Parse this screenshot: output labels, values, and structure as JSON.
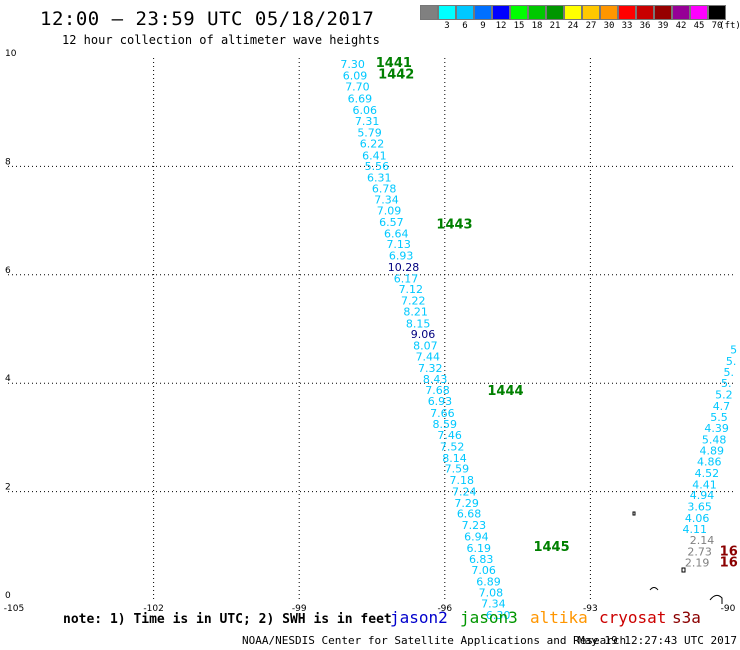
{
  "header": {
    "title": "12:00 – 23:59 UTC 05/18/2017",
    "subtitle": "12 hour collection of altimeter wave heights"
  },
  "legend": {
    "unit_label": "(ft)",
    "entries": [
      {
        "label": "",
        "color": "#808080"
      },
      {
        "label": "3",
        "color": "#00ffff"
      },
      {
        "label": "6",
        "color": "#00c8ff"
      },
      {
        "label": "9",
        "color": "#0070ff"
      },
      {
        "label": "12",
        "color": "#0000ff"
      },
      {
        "label": "15",
        "color": "#00ff00"
      },
      {
        "label": "18",
        "color": "#00c800"
      },
      {
        "label": "21",
        "color": "#009600"
      },
      {
        "label": "24",
        "color": "#ffff00"
      },
      {
        "label": "27",
        "color": "#ffc800"
      },
      {
        "label": "30",
        "color": "#ff9600"
      },
      {
        "label": "33",
        "color": "#ff0000"
      },
      {
        "label": "36",
        "color": "#c80000"
      },
      {
        "label": "39",
        "color": "#960000"
      },
      {
        "label": "42",
        "color": "#960096"
      },
      {
        "label": "45",
        "color": "#ff00ff"
      },
      {
        "label": "70",
        "color": "#000000"
      }
    ]
  },
  "map": {
    "lon_range": [
      -105,
      -90
    ],
    "lat_range": [
      0,
      10
    ],
    "lon_ticks": [
      "-105",
      "-102",
      "-99",
      "-96",
      "-93",
      "-90"
    ],
    "lat_ticks": [
      "0",
      "2",
      "4",
      "6",
      "8",
      "10"
    ],
    "colors": {
      "cyan": "#00c8ff",
      "navy": "#000080",
      "green": "#008000",
      "gray": "#808080",
      "darkred": "#8b0000"
    },
    "track_a": [
      {
        "lon": -97.9,
        "lat": 9.82,
        "v": "7.30"
      },
      {
        "lon": -97.85,
        "lat": 9.6,
        "v": "6.09"
      },
      {
        "lon": -97.8,
        "lat": 9.4,
        "v": "7.70"
      },
      {
        "lon": -97.75,
        "lat": 9.18,
        "v": "6.69"
      },
      {
        "lon": -97.65,
        "lat": 8.97,
        "v": "6.06"
      },
      {
        "lon": -97.6,
        "lat": 8.76,
        "v": "7.31"
      },
      {
        "lon": -97.55,
        "lat": 8.55,
        "v": "5.79"
      },
      {
        "lon": -97.5,
        "lat": 8.35,
        "v": "6.22"
      },
      {
        "lon": -97.45,
        "lat": 8.13,
        "v": "6.41"
      },
      {
        "lon": -97.4,
        "lat": 7.93,
        "v": "5.56"
      },
      {
        "lon": -97.35,
        "lat": 7.72,
        "v": "6.31"
      },
      {
        "lon": -97.25,
        "lat": 7.52,
        "v": "6.78"
      },
      {
        "lon": -97.2,
        "lat": 7.32,
        "v": "7.34"
      },
      {
        "lon": -97.15,
        "lat": 7.11,
        "v": "7.09"
      },
      {
        "lon": -97.1,
        "lat": 6.9,
        "v": "6.57"
      },
      {
        "lon": -97.0,
        "lat": 6.69,
        "v": "6.64"
      },
      {
        "lon": -96.95,
        "lat": 6.49,
        "v": "7.13"
      },
      {
        "lon": -96.9,
        "lat": 6.28,
        "v": "6.93"
      },
      {
        "lon": -96.85,
        "lat": 6.07,
        "v": "10.28",
        "c": "navy"
      },
      {
        "lon": -96.8,
        "lat": 5.86,
        "v": "6.17"
      },
      {
        "lon": -96.7,
        "lat": 5.66,
        "v": "7.12"
      },
      {
        "lon": -96.65,
        "lat": 5.45,
        "v": "7.22"
      },
      {
        "lon": -96.6,
        "lat": 5.25,
        "v": "8.21"
      },
      {
        "lon": -96.55,
        "lat": 5.03,
        "v": "8.15"
      },
      {
        "lon": -96.45,
        "lat": 4.83,
        "v": "9.06",
        "c": "navy"
      },
      {
        "lon": -96.4,
        "lat": 4.62,
        "v": "8.07"
      },
      {
        "lon": -96.35,
        "lat": 4.42,
        "v": "7.44"
      },
      {
        "lon": -96.3,
        "lat": 4.21,
        "v": "7.32"
      },
      {
        "lon": -96.2,
        "lat": 4.0,
        "v": "8.43"
      },
      {
        "lon": -96.15,
        "lat": 3.8,
        "v": "7.68"
      },
      {
        "lon": -96.1,
        "lat": 3.6,
        "v": "6.93"
      },
      {
        "lon": -96.05,
        "lat": 3.38,
        "v": "7.66"
      },
      {
        "lon": -96.0,
        "lat": 3.17,
        "v": "8.59"
      },
      {
        "lon": -95.9,
        "lat": 2.97,
        "v": "7.46"
      },
      {
        "lon": -95.85,
        "lat": 2.76,
        "v": "7.52"
      },
      {
        "lon": -95.8,
        "lat": 2.55,
        "v": "8.14"
      },
      {
        "lon": -95.75,
        "lat": 2.35,
        "v": "7.59"
      },
      {
        "lon": -95.65,
        "lat": 2.14,
        "v": "7.18"
      },
      {
        "lon": -95.6,
        "lat": 1.93,
        "v": "7.24"
      },
      {
        "lon": -95.55,
        "lat": 1.72,
        "v": "7.29"
      },
      {
        "lon": -95.5,
        "lat": 1.52,
        "v": "6.68"
      },
      {
        "lon": -95.4,
        "lat": 1.31,
        "v": "7.23"
      },
      {
        "lon": -95.35,
        "lat": 1.1,
        "v": "6.94"
      },
      {
        "lon": -95.3,
        "lat": 0.89,
        "v": "6.19"
      },
      {
        "lon": -95.25,
        "lat": 0.68,
        "v": "6.83"
      },
      {
        "lon": -95.2,
        "lat": 0.48,
        "v": "7.06"
      },
      {
        "lon": -95.1,
        "lat": 0.27,
        "v": "6.89"
      },
      {
        "lon": -95.05,
        "lat": 0.06,
        "v": "7.08"
      },
      {
        "lon": -95.0,
        "lat": -0.14,
        "v": "7.34"
      },
      {
        "lon": -94.9,
        "lat": -0.35,
        "v": "6.30"
      }
    ],
    "track_b": [
      {
        "lon": -90.05,
        "lat": 4.55,
        "v": "5"
      },
      {
        "lon": -90.1,
        "lat": 4.34,
        "v": "5."
      },
      {
        "lon": -90.15,
        "lat": 4.13,
        "v": "5."
      },
      {
        "lon": -90.2,
        "lat": 3.93,
        "v": "5."
      },
      {
        "lon": -90.25,
        "lat": 3.72,
        "v": "5.2"
      },
      {
        "lon": -90.3,
        "lat": 3.51,
        "v": "4.7"
      },
      {
        "lon": -90.35,
        "lat": 3.3,
        "v": "5.5"
      },
      {
        "lon": -90.4,
        "lat": 3.1,
        "v": "4.39"
      },
      {
        "lon": -90.45,
        "lat": 2.89,
        "v": "5.48"
      },
      {
        "lon": -90.5,
        "lat": 2.68,
        "v": "4.89"
      },
      {
        "lon": -90.55,
        "lat": 2.48,
        "v": "4.86"
      },
      {
        "lon": -90.6,
        "lat": 2.27,
        "v": "4.52"
      },
      {
        "lon": -90.65,
        "lat": 2.06,
        "v": "4.41"
      },
      {
        "lon": -90.7,
        "lat": 1.86,
        "v": "4.94"
      },
      {
        "lon": -90.75,
        "lat": 1.65,
        "v": "3.65"
      },
      {
        "lon": -90.8,
        "lat": 1.44,
        "v": "4.06"
      },
      {
        "lon": -90.85,
        "lat": 1.24,
        "v": "4.11"
      }
    ],
    "track_c": [
      {
        "lon": -90.7,
        "lat": 1.03,
        "v": "2.14",
        "c": "gray"
      },
      {
        "lon": -90.75,
        "lat": 0.82,
        "v": "2.73",
        "c": "gray"
      },
      {
        "lon": -90.8,
        "lat": 0.62,
        "v": "2.19",
        "c": "gray"
      }
    ],
    "track_d": [
      {
        "lon": -90.15,
        "lat": 0.82,
        "v": "16"
      },
      {
        "lon": -90.15,
        "lat": 0.62,
        "v": "16"
      }
    ],
    "orbits": [
      {
        "lon": -97.05,
        "lat": 9.83,
        "v": "1441"
      },
      {
        "lon": -97.0,
        "lat": 9.62,
        "v": "1442"
      },
      {
        "lon": -95.8,
        "lat": 6.85,
        "v": "1443"
      },
      {
        "lon": -94.75,
        "lat": 3.78,
        "v": "1444"
      },
      {
        "lon": -93.8,
        "lat": 0.9,
        "v": "1445"
      }
    ]
  },
  "footer": {
    "note": "note: 1) Time is in UTC; 2) SWH is in feet",
    "satellites": [
      {
        "name": "jason2",
        "color": "#0000cc"
      },
      {
        "name": "jason3",
        "color": "#009600"
      },
      {
        "name": "altika",
        "color": "#ff9600"
      },
      {
        "name": "cryosat",
        "color": "#cc0000"
      },
      {
        "name": "s3a",
        "color": "#8b0000"
      }
    ],
    "credit": "NOAA/NESDIS Center for Satellite Applications and Research",
    "timestamp": "May 19 12:27:43 UTC 2017"
  }
}
